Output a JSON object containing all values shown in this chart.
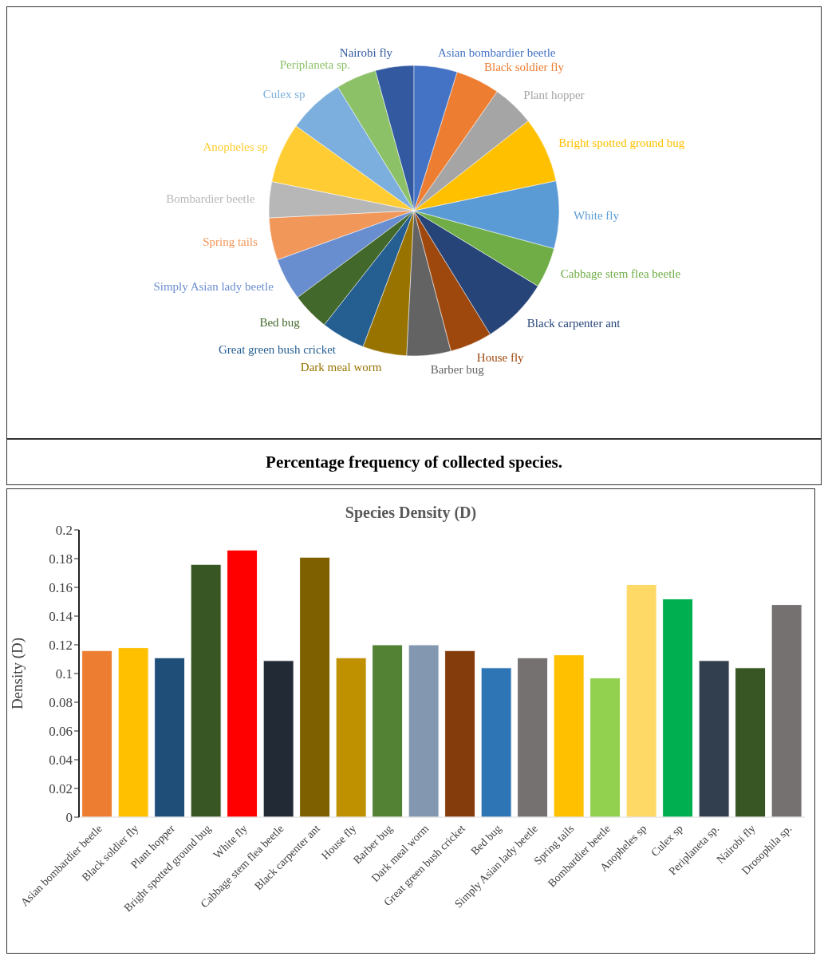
{
  "chart_data": [
    {
      "type": "pie",
      "categories": [
        "Nairobi fly",
        "Periplaneta sp.",
        "Culex sp",
        "Anopheles sp",
        "Bombardier beetle",
        "Spring tails",
        "Simply Asian lady beetle",
        "Bed bug",
        "Great green bush cricket",
        "Dark meal worm",
        "Barber bug",
        "House fly",
        "Black carpenter ant",
        "Cabbage stem flea beetle",
        "White fly",
        "Bright spotted ground bug",
        "Plant hopper",
        "Black soldier fly",
        "Asian bombardier beetle"
      ],
      "values": [
        4.3,
        4.5,
        6.3,
        6.7,
        4.0,
        4.7,
        4.7,
        4.2,
        4.9,
        4.9,
        4.9,
        4.7,
        7.5,
        4.5,
        7.5,
        7.3,
        4.7,
        4.9,
        4.8
      ],
      "colors": [
        "#335aa1",
        "#8cc168",
        "#7cafdd",
        "#ffcd33",
        "#b7b7b7",
        "#f1975a",
        "#698ed0",
        "#43682b",
        "#255e91",
        "#997300",
        "#636363",
        "#9e480e",
        "#264478",
        "#70ad47",
        "#5b9bd5",
        "#ffc000",
        "#a5a5a5",
        "#ed7d31",
        "#4472c4"
      ],
      "annotations": [
        "Percentage frequency of collected species."
      ]
    },
    {
      "type": "bar",
      "title": "Species Density (D)",
      "ylabel": "Density (D)",
      "categories": [
        "Asian bombardier beetle",
        "Black soldier fly",
        "Plant hopper",
        "Bright spotted ground bug",
        "White fly",
        "Cabbage stem flea beetle",
        "Black carpenter ant",
        "House fly",
        "Barber bug",
        "Dark meal worm",
        "Great green bush cricket",
        "Bed bug",
        "Simply Asian lady beetle",
        "Spring tails",
        "Bombardier beetle",
        "Anopheles sp",
        "Culex sp",
        "Periplaneta sp.",
        "Nairobi fly",
        "Drosophila sp."
      ],
      "values": [
        0.116,
        0.118,
        0.111,
        0.176,
        0.186,
        0.109,
        0.181,
        0.111,
        0.12,
        0.12,
        0.116,
        0.104,
        0.111,
        0.113,
        0.097,
        0.162,
        0.152,
        0.109,
        0.104,
        0.148
      ],
      "colors": [
        "#ed7d31",
        "#ffc000",
        "#1f4e79",
        "#375623",
        "#ff0000",
        "#222a35",
        "#7f6000",
        "#bf9000",
        "#548235",
        "#8497b0",
        "#843c0c",
        "#2e75b6",
        "#767171",
        "#ffc000",
        "#92d050",
        "#ffd966",
        "#00b050",
        "#323f4f",
        "#375623",
        "#767171"
      ],
      "ylim": [
        0,
        0.2
      ],
      "yticks": [
        0,
        0.02,
        0.04,
        0.06,
        0.08,
        0.1,
        0.12,
        0.14,
        0.16,
        0.18,
        0.2
      ]
    }
  ]
}
